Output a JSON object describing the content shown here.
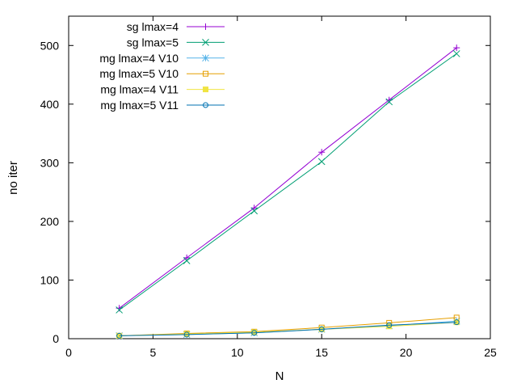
{
  "chart_data": {
    "type": "line",
    "title": "",
    "xlabel": "N",
    "ylabel": "no iter",
    "xlim": [
      0,
      25
    ],
    "ylim": [
      0,
      550
    ],
    "xticks": [
      0,
      5,
      10,
      15,
      20,
      25
    ],
    "yticks": [
      0,
      100,
      200,
      300,
      400,
      500
    ],
    "grid": false,
    "legend_position": "top-left",
    "x": [
      3,
      7,
      11,
      15,
      19,
      23
    ],
    "series": [
      {
        "name": "sg lmax=4",
        "color": "#9400d3",
        "marker": "plus",
        "values": [
          52,
          138,
          223,
          318,
          407,
          496
        ]
      },
      {
        "name": "sg lmax=5",
        "color": "#009e73",
        "marker": "cross",
        "values": [
          49,
          133,
          218,
          302,
          404,
          486
        ]
      },
      {
        "name": "mg lmax=4 V10",
        "color": "#56b4e9",
        "marker": "star",
        "values": [
          5,
          7,
          10,
          16,
          22,
          30
        ]
      },
      {
        "name": "mg lmax=5 V10",
        "color": "#e69f00",
        "marker": "box",
        "values": [
          5,
          9,
          12,
          19,
          27,
          36
        ]
      },
      {
        "name": "mg lmax=4 V11",
        "color": "#f0e442",
        "marker": "filledbox",
        "values": [
          5,
          8,
          11,
          16,
          21,
          28
        ]
      },
      {
        "name": "mg lmax=5 V11",
        "color": "#0072b2",
        "marker": "circle",
        "values": [
          5,
          7,
          10,
          16,
          23,
          28
        ]
      }
    ]
  }
}
